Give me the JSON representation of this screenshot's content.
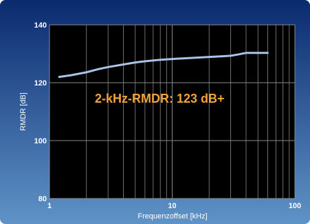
{
  "chart_data": {
    "type": "line",
    "xlabel": "Frequenzoffset [kHz]",
    "ylabel": "RMDR [dB]",
    "xscale": "log",
    "xlim": [
      1,
      100
    ],
    "ylim": [
      80,
      140
    ],
    "xticks": [
      1,
      10,
      100
    ],
    "xtick_labels": [
      "1",
      "10",
      "100"
    ],
    "yticks": [
      80,
      100,
      120,
      140
    ],
    "ytick_labels": [
      "80",
      "100",
      "120",
      "140"
    ],
    "grid": true,
    "annotation": "2-kHz-RMDR: 123 dB+",
    "series": [
      {
        "x": [
          1.2,
          1.5,
          2,
          2.5,
          3,
          4,
          5,
          6,
          8,
          10,
          15,
          20,
          25,
          30,
          35,
          40,
          50,
          60
        ],
        "y": [
          122,
          122.6,
          123.6,
          124.7,
          125.4,
          126.3,
          127,
          127.4,
          127.9,
          128.2,
          128.6,
          128.9,
          129.1,
          129.3,
          129.8,
          130.3,
          130.3,
          130.3
        ]
      }
    ],
    "colors": {
      "background_top": "#0a2a6e",
      "background_bottom": "#5f93c7",
      "plot_background": "#000000",
      "grid": "#8a8a8a",
      "line": "#a9c4e8",
      "annotation": "#f2a33a",
      "text": "#ffffff"
    }
  }
}
